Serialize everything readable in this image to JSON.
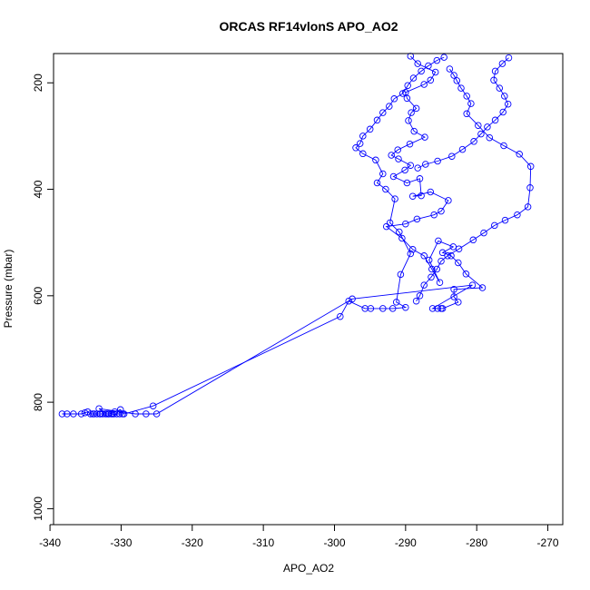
{
  "chart_data": {
    "type": "line",
    "title": "ORCAS RF14vlonS APO_AO2",
    "xlabel": "APO_AO2",
    "ylabel": "Pressure (mbar)",
    "xlim": [
      -339.5,
      -267.9
    ],
    "ylim": [
      1030,
      145
    ],
    "y_reversed": true,
    "xticks": [
      -340,
      -330,
      -320,
      -310,
      -300,
      -290,
      -280,
      -270
    ],
    "yticks": [
      200,
      400,
      600,
      800,
      1000
    ],
    "grid": false,
    "series_color": "#0000ff",
    "marker": "open-circle",
    "series": [
      {
        "points": [
          [
            -338.3,
            822
          ],
          [
            -337.6,
            822
          ],
          [
            -336.7,
            822
          ],
          [
            -335.6,
            822
          ],
          [
            -335.1,
            820
          ],
          [
            -334.7,
            818
          ],
          [
            -334.3,
            822
          ],
          [
            -333.8,
            822
          ],
          [
            -333.4,
            822
          ],
          [
            -333.0,
            822
          ],
          [
            -332.6,
            822
          ],
          [
            -332.2,
            822
          ],
          [
            -331.8,
            822
          ],
          [
            -331.4,
            822
          ],
          [
            -331.0,
            822
          ],
          [
            -330.6,
            822
          ],
          [
            -330.2,
            822
          ],
          [
            -329.8,
            822
          ],
          [
            -331.2,
            822
          ],
          [
            -332.0,
            822
          ],
          [
            -333.1,
            812
          ],
          [
            -328.0,
            822
          ],
          [
            -326.5,
            822
          ],
          [
            -325.0,
            822
          ],
          [
            -297.5,
            606
          ],
          [
            -280.6,
            580
          ],
          [
            -286.2,
            624
          ],
          [
            -285.5,
            624
          ],
          [
            -285.0,
            624
          ],
          [
            -284.8,
            624
          ],
          [
            -282.6,
            612
          ],
          [
            -283.2,
            602
          ],
          [
            -283.2,
            588
          ],
          [
            -279.2,
            585
          ],
          [
            -281.5,
            559
          ],
          [
            -282.6,
            538
          ],
          [
            -283.6,
            525
          ],
          [
            -284.8,
            519
          ],
          [
            -283.3,
            508
          ],
          [
            -285.4,
            497
          ],
          [
            -286.7,
            533
          ],
          [
            -285.2,
            575
          ],
          [
            -286.3,
            550
          ],
          [
            -287.4,
            525
          ],
          [
            -289.0,
            513
          ],
          [
            -290.5,
            492
          ],
          [
            -292.7,
            470
          ],
          [
            -290.0,
            465
          ],
          [
            -288.4,
            456
          ],
          [
            -286.0,
            448
          ],
          [
            -285.0,
            441
          ],
          [
            -284.0,
            421
          ],
          [
            -286.5,
            405
          ],
          [
            -289.0,
            413
          ],
          [
            -287.8,
            412
          ],
          [
            -288.0,
            380
          ],
          [
            -289.8,
            388
          ],
          [
            -291.7,
            376
          ],
          [
            -290.1,
            364
          ],
          [
            -289.3,
            355
          ],
          [
            -291.0,
            343
          ],
          [
            -292.0,
            336
          ],
          [
            -291.1,
            326
          ],
          [
            -289.4,
            315
          ],
          [
            -287.3,
            302
          ],
          [
            -288.8,
            291
          ],
          [
            -289.6,
            271
          ],
          [
            -289.2,
            256
          ],
          [
            -288.5,
            248
          ],
          [
            -289.8,
            229
          ],
          [
            -290.0,
            218
          ],
          [
            -287.4,
            203
          ],
          [
            -286.5,
            195
          ],
          [
            -285.8,
            180
          ],
          [
            -288.3,
            164
          ],
          [
            -289.3,
            150
          ]
        ]
      },
      {
        "points": [
          [
            -334.0,
            822
          ],
          [
            -332.9,
            822
          ],
          [
            -331.7,
            822
          ],
          [
            -330.9,
            818
          ],
          [
            -330.1,
            814
          ],
          [
            -329.6,
            822
          ],
          [
            -325.5,
            807
          ],
          [
            -299.2,
            639
          ],
          [
            -298.0,
            610
          ],
          [
            -295.7,
            624
          ],
          [
            -294.9,
            624
          ],
          [
            -293.2,
            624
          ],
          [
            -291.8,
            624
          ],
          [
            -290.0,
            622
          ],
          [
            -291.3,
            612
          ],
          [
            -290.7,
            560
          ],
          [
            -289.3,
            521
          ],
          [
            -290.9,
            480
          ],
          [
            -292.2,
            463
          ],
          [
            -291.5,
            418
          ],
          [
            -292.8,
            400
          ],
          [
            -294.0,
            388
          ],
          [
            -293.2,
            371
          ],
          [
            -294.2,
            345
          ],
          [
            -296.0,
            333
          ],
          [
            -297.0,
            322
          ],
          [
            -296.4,
            314
          ],
          [
            -296.0,
            300
          ],
          [
            -295.0,
            287
          ],
          [
            -294.0,
            270
          ],
          [
            -293.2,
            256
          ],
          [
            -292.3,
            244
          ],
          [
            -291.6,
            230
          ],
          [
            -290.4,
            220
          ],
          [
            -289.7,
            205
          ],
          [
            -288.9,
            191
          ],
          [
            -287.8,
            178
          ],
          [
            -286.8,
            168
          ],
          [
            -285.6,
            158
          ],
          [
            -284.6,
            152
          ]
        ]
      },
      {
        "points": [
          [
            -283.8,
            174
          ],
          [
            -283.2,
            186
          ],
          [
            -282.8,
            196
          ],
          [
            -282.2,
            210
          ],
          [
            -281.4,
            225
          ],
          [
            -280.8,
            239
          ],
          [
            -281.4,
            258
          ],
          [
            -279.8,
            280
          ],
          [
            -278.2,
            303
          ],
          [
            -276.2,
            318
          ],
          [
            -274.0,
            334
          ],
          [
            -272.4,
            357
          ],
          [
            -272.5,
            397
          ],
          [
            -272.8,
            433
          ],
          [
            -274.3,
            448
          ],
          [
            -276.0,
            458
          ],
          [
            -277.5,
            468
          ],
          [
            -279.0,
            482
          ],
          [
            -280.5,
            495
          ],
          [
            -282.5,
            512
          ],
          [
            -284.1,
            525
          ],
          [
            -285.0,
            535
          ],
          [
            -285.6,
            550
          ],
          [
            -286.4,
            565
          ],
          [
            -287.4,
            580
          ],
          [
            -288.0,
            600
          ],
          [
            -288.5,
            610
          ]
        ]
      },
      {
        "points": [
          [
            -275.5,
            153
          ],
          [
            -276.4,
            164
          ],
          [
            -277.4,
            178
          ],
          [
            -277.6,
            195
          ],
          [
            -276.8,
            210
          ],
          [
            -276.1,
            225
          ],
          [
            -275.6,
            240
          ],
          [
            -276.3,
            255
          ],
          [
            -277.4,
            270
          ],
          [
            -278.5,
            283
          ],
          [
            -279.4,
            296
          ],
          [
            -280.4,
            310
          ],
          [
            -282.0,
            325
          ],
          [
            -283.5,
            338
          ],
          [
            -285.5,
            347
          ],
          [
            -287.2,
            353
          ],
          [
            -288.3,
            360
          ]
        ]
      }
    ]
  }
}
